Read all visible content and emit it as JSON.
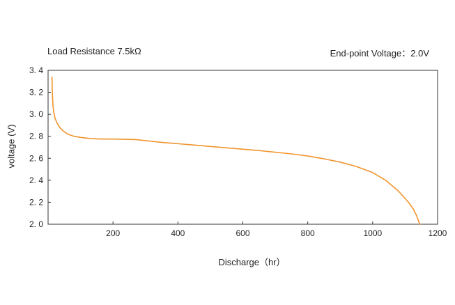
{
  "chart_data": {
    "type": "line",
    "annotations": {
      "left": "Load Resistance 7.5kΩ",
      "right": "End-point Voltage：2.0V"
    },
    "xlabel": "Discharge（hr）",
    "ylabel": "voltage (V)",
    "xlim": [
      0,
      1200
    ],
    "ylim": [
      2.0,
      3.4
    ],
    "x_ticks": [
      200,
      400,
      600,
      800,
      1000,
      1200
    ],
    "x_tick_labels": [
      "200",
      "400",
      "600",
      "800",
      "1000",
      "1200"
    ],
    "y_ticks": [
      2.0,
      2.2,
      2.4,
      2.6,
      2.8,
      3.0,
      3.2,
      3.4
    ],
    "y_tick_labels": [
      "2. 0",
      "2. 2",
      "2. 4",
      "2. 6",
      "2. 8",
      "3. 0",
      "3. 2",
      "3. 4"
    ],
    "grid": false,
    "series": [
      {
        "color": "#f0942e",
        "x": [
          12,
          13,
          15,
          18,
          22,
          28,
          36,
          46,
          60,
          80,
          100,
          130,
          160,
          200,
          270,
          350,
          450,
          550,
          650,
          750,
          800,
          850,
          900,
          950,
          1000,
          1040,
          1080,
          1110,
          1125,
          1135,
          1145
        ],
        "y": [
          3.34,
          3.2,
          3.08,
          3.01,
          2.96,
          2.92,
          2.88,
          2.85,
          2.82,
          2.8,
          2.79,
          2.78,
          2.775,
          2.775,
          2.77,
          2.745,
          2.72,
          2.695,
          2.67,
          2.64,
          2.62,
          2.595,
          2.565,
          2.525,
          2.47,
          2.4,
          2.3,
          2.2,
          2.14,
          2.08,
          2.0
        ]
      }
    ]
  }
}
